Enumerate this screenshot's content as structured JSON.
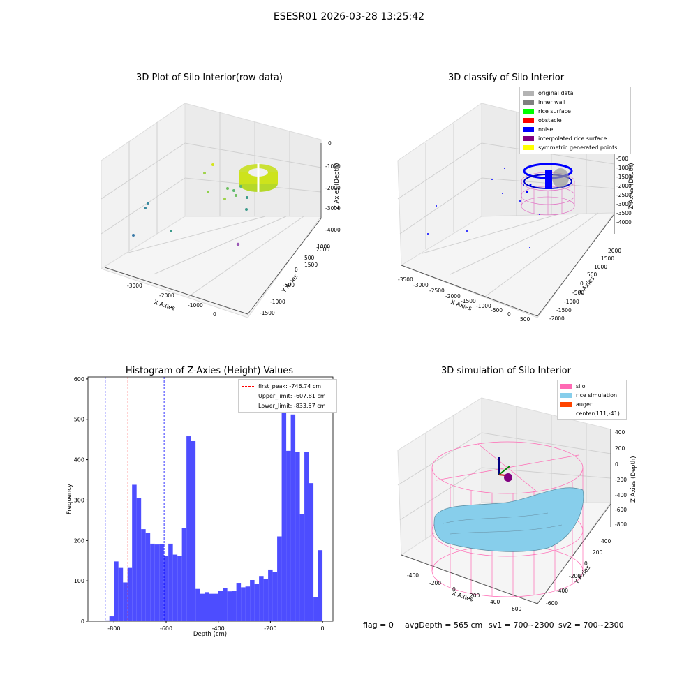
{
  "suptitle": "ESESR01 2026-03-28 13:25:42",
  "footer": {
    "flag": "flag = 0",
    "avg": "avgDepth = 565 cm",
    "sv1": "sv1 = 700~2300",
    "sv2": "sv2 = 700~2300"
  },
  "chart_data": [
    {
      "type": "scatter",
      "title": "3D Plot of Silo Interior(row data)",
      "xlabel": "X Axies",
      "ylabel": "Y Axies",
      "zlabel": "Z Axies (Depth)",
      "xticks": [
        "-3000",
        "-2000",
        "-1000",
        "0"
      ],
      "yticks": [
        "-1500",
        "-1000",
        "-500",
        "0",
        "500",
        "1000",
        "1500",
        "2000"
      ],
      "zticks": [
        "0",
        "-1000",
        "-2000",
        "-3000",
        "-4000"
      ],
      "colors": {
        "dense": "#d4e51a",
        "scatter": "#3a9a8a",
        "outlier": "#9b59b6"
      }
    },
    {
      "type": "scatter",
      "title": "3D classify of Silo Interior",
      "xlabel": "X Axies",
      "ylabel": "Y Axies",
      "zlabel": "Z Axies (Depth)",
      "xticks": [
        "-3500",
        "-3000",
        "-2500",
        "-2000",
        "-1500",
        "-1000",
        "-500",
        "0",
        "500"
      ],
      "yticks": [
        "-2000",
        "-1500",
        "-1000",
        "-500",
        "0",
        "500",
        "1000",
        "1500",
        "2000"
      ],
      "zticks": [
        "-500",
        "-1000",
        "-1500",
        "-2000",
        "-2500",
        "-3000",
        "-3500",
        "-4000"
      ],
      "legend_position": "top-right",
      "legend": [
        {
          "label": "original data",
          "color": "#b3b3b3"
        },
        {
          "label": "inner wall",
          "color": "#808080"
        },
        {
          "label": "rice surface",
          "color": "#00ff00"
        },
        {
          "label": "obstacle",
          "color": "#ff0000"
        },
        {
          "label": "noise",
          "color": "#0000ff"
        },
        {
          "label": "interpolated rice surface",
          "color": "#800080"
        },
        {
          "label": "symmetric generated points",
          "color": "#ffff00"
        }
      ]
    },
    {
      "type": "bar",
      "title": "Histogram of Z-Axies (Height) Values",
      "xlabel": "Depth (cm)",
      "ylabel": "Frequency",
      "xlim": [
        -900,
        40
      ],
      "ylim": [
        0,
        605
      ],
      "xticks": [
        -800,
        -600,
        -400,
        -200,
        0
      ],
      "yticks": [
        0,
        100,
        200,
        300,
        400,
        500,
        600
      ],
      "bin_start": -870,
      "bin_width": 17.4,
      "bar_color": "#4d4dff",
      "values": [
        0,
        1,
        2,
        12,
        148,
        132,
        96,
        132,
        338,
        305,
        228,
        218,
        192,
        190,
        191,
        162,
        192,
        165,
        162,
        230,
        458,
        446,
        80,
        68,
        72,
        68,
        68,
        76,
        82,
        74,
        76,
        95,
        84,
        86,
        102,
        92,
        112,
        104,
        128,
        122,
        210,
        536,
        422,
        512,
        420,
        265,
        420,
        342,
        60,
        176
      ],
      "vlines": [
        {
          "label": "first_peak: -746.74 cm",
          "x": -746.74,
          "color": "#ff0000"
        },
        {
          "label": "Upper_limit: -607.81 cm",
          "x": -607.81,
          "color": "#0000ff"
        },
        {
          "label": "Lower_limit: -833.57 cm",
          "x": -833.57,
          "color": "#0000ff"
        }
      ],
      "legend_position": "top-right"
    },
    {
      "type": "area",
      "title": "3D simulation of Silo Interior",
      "xlabel": "X Axies",
      "ylabel": "Y Axies",
      "zlabel": "Z Axies (Depth)",
      "xticks": [
        "-400",
        "-200",
        "0",
        "200",
        "400",
        "600"
      ],
      "yticks": [
        "-600",
        "-400",
        "-200",
        "0",
        "200",
        "400"
      ],
      "zticks": [
        "400",
        "200",
        "0",
        "-200",
        "-400",
        "-600",
        "-800"
      ],
      "legend_position": "top-right",
      "legend": [
        {
          "label": "silo",
          "color": "#ff69b4"
        },
        {
          "label": "rice simulation",
          "color": "#87ceeb"
        },
        {
          "label": "auger",
          "color": "#ff4500"
        },
        {
          "label": "center(111,-41)",
          "color": "none"
        }
      ]
    }
  ]
}
